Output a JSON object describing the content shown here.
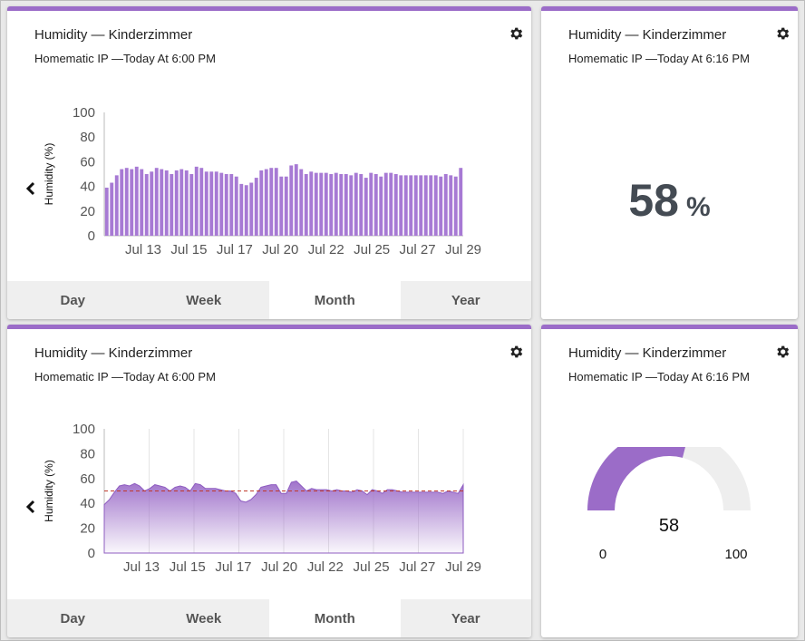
{
  "colors": {
    "accent": "#9b6cc8",
    "bar": "#a77ad4",
    "avg_line": "#c0392b",
    "gauge_bg": "#eeeeee"
  },
  "icons": {
    "settings": "gear-icon",
    "back": "chevron-left-icon"
  },
  "cards": [
    {
      "title": "Humidity — Kinderzimmer",
      "subtitle": "Homematic IP —Today At 6:00 PM"
    },
    {
      "title": "Humidity — Kinderzimmer",
      "subtitle": "Homematic IP —Today At 6:16 PM",
      "value": "58",
      "unit": "%"
    },
    {
      "title": "Humidity — Kinderzimmer",
      "subtitle": "Homematic IP —Today At 6:00 PM"
    },
    {
      "title": "Humidity — Kinderzimmer",
      "subtitle": "Homematic IP —Today At 6:16 PM",
      "gauge_value": "58",
      "gauge_min": "0",
      "gauge_max": "100"
    }
  ],
  "tabs": [
    "Day",
    "Week",
    "Month",
    "Year"
  ],
  "active_tab": "Month",
  "chart_data": [
    {
      "type": "bar",
      "ylabel": "Humidity (%)",
      "ylim": [
        0,
        100
      ],
      "yticks": [
        "100",
        "80",
        "60",
        "40",
        "20",
        "0"
      ],
      "xticks": [
        "Jul 13",
        "Jul 15",
        "Jul 17",
        "Jul 20",
        "Jul 22",
        "Jul 25",
        "Jul 27",
        "Jul 29"
      ],
      "values": [
        39,
        43,
        49,
        54,
        55,
        54,
        56,
        54,
        50,
        52,
        55,
        54,
        53,
        50,
        53,
        54,
        53,
        50,
        56,
        55,
        52,
        52,
        52,
        51,
        50,
        50,
        48,
        42,
        41,
        43,
        47,
        53,
        54,
        55,
        55,
        48,
        48,
        57,
        58,
        54,
        50,
        52,
        51,
        51,
        51,
        50,
        51,
        50,
        50,
        49,
        51,
        50,
        47,
        51,
        50,
        48,
        51,
        51,
        50,
        49,
        49,
        49,
        49,
        49,
        49,
        49,
        49,
        48,
        50,
        49,
        48,
        55
      ]
    },
    {
      "type": "area",
      "ylabel": "Humidity (%)",
      "ylim": [
        0,
        100
      ],
      "yticks": [
        "100",
        "80",
        "60",
        "40",
        "20",
        "0"
      ],
      "xticks": [
        "Jul 13",
        "Jul 15",
        "Jul 17",
        "Jul 20",
        "Jul 22",
        "Jul 25",
        "Jul 27",
        "Jul 29"
      ],
      "average": 50,
      "values": [
        39,
        43,
        49,
        54,
        55,
        54,
        56,
        54,
        50,
        52,
        55,
        54,
        53,
        50,
        53,
        54,
        53,
        50,
        56,
        55,
        52,
        52,
        52,
        51,
        50,
        50,
        48,
        42,
        41,
        43,
        47,
        53,
        54,
        55,
        55,
        48,
        48,
        57,
        58,
        54,
        50,
        52,
        51,
        51,
        51,
        50,
        51,
        50,
        50,
        49,
        51,
        50,
        47,
        51,
        50,
        48,
        51,
        51,
        50,
        49,
        49,
        49,
        49,
        49,
        49,
        49,
        49,
        48,
        50,
        49,
        48,
        55
      ]
    },
    {
      "type": "gauge",
      "value": 58,
      "min": 0,
      "max": 100
    }
  ]
}
